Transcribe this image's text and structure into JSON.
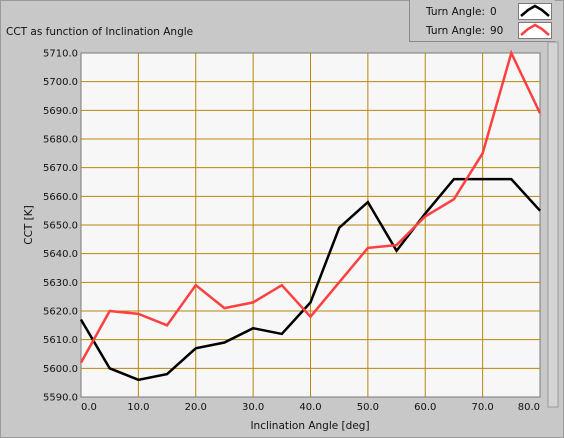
{
  "chart_data": {
    "type": "line",
    "title": "CCT as function of Inclination Angle",
    "xlabel": "Inclination Angle [deg]",
    "ylabel": "CCT [K]",
    "xlim": [
      0,
      80
    ],
    "ylim": [
      5590,
      5710
    ],
    "x_ticks": [
      "0.0",
      "10.0",
      "20.0",
      "30.0",
      "40.0",
      "50.0",
      "60.0",
      "70.0",
      "80.0"
    ],
    "y_ticks": [
      "5590.0",
      "5600.0",
      "5610.0",
      "5620.0",
      "5630.0",
      "5640.0",
      "5650.0",
      "5660.0",
      "5670.0",
      "5680.0",
      "5690.0",
      "5700.0",
      "5710.0"
    ],
    "grid": true,
    "legend_position": "top-right",
    "x": [
      0,
      5,
      10,
      15,
      20,
      25,
      30,
      35,
      40,
      45,
      50,
      55,
      60,
      65,
      70,
      75,
      80
    ],
    "series": [
      {
        "name": "Turn Angle:",
        "turn_angle": "0",
        "color": "#000000",
        "values": [
          5617,
          5600,
          5596,
          5598,
          5607,
          5609,
          5614,
          5612,
          5623,
          5649,
          5658,
          5641,
          5654,
          5666,
          5666,
          5666,
          5655
        ]
      },
      {
        "name": "Turn Angle:",
        "turn_angle": "90",
        "color": "#ff4040",
        "values": [
          5602,
          5620,
          5619,
          5615,
          5629,
          5621,
          5623,
          5629,
          5618,
          5630,
          5642,
          5643,
          5653,
          5659,
          5675,
          5710,
          5689
        ]
      }
    ]
  },
  "colors": {
    "panel_bg": "#c8c8c8",
    "plot_bg": "#f7f7f7",
    "grid": "#b8860b"
  }
}
